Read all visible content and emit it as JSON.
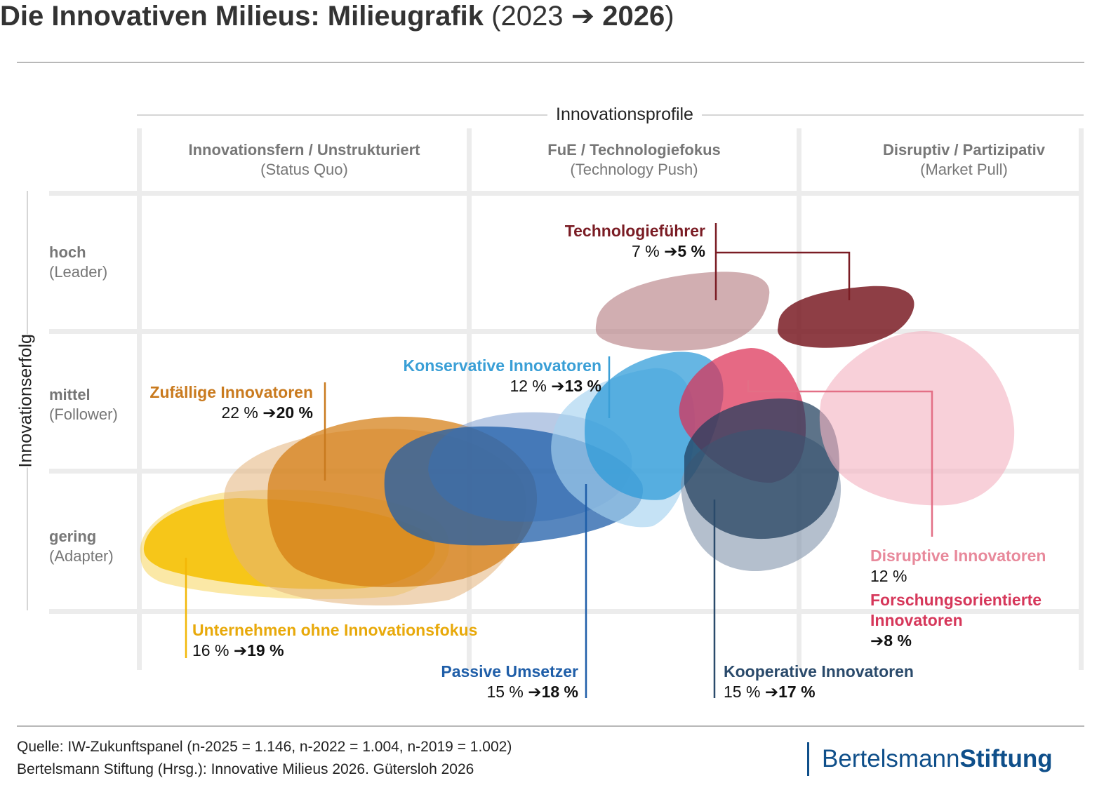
{
  "title": {
    "main": "Die Innovativen Milieus: Milieugrafik",
    "paren_open": "(2023",
    "arrow": "➔",
    "year_new": "2026",
    "paren_close": ")"
  },
  "chart_data": {
    "type": "bubble-matrix",
    "x_axis_title": "Innovationsprofile",
    "y_axis_title": "Innovationserfolg",
    "columns": [
      {
        "label": "Innovationsfern / Unstrukturiert",
        "sub": "(Status Quo)"
      },
      {
        "label": "FuE / Technologiefokus",
        "sub": "(Technology Push)"
      },
      {
        "label": "Disruptiv / Partizipativ",
        "sub": "(Market Pull)"
      }
    ],
    "rows": [
      {
        "label": "hoch",
        "sub": "(Leader)"
      },
      {
        "label": "mittel",
        "sub": "(Follower)"
      },
      {
        "label": "gering",
        "sub": "(Adapter)"
      }
    ],
    "milieus": [
      {
        "id": "technologiefuehrer",
        "name": "Technologieführer",
        "pct_2023": "7 %",
        "pct_2026": "5 %",
        "color": "#7a1c24"
      },
      {
        "id": "konservative",
        "name": "Konservative Innovatoren",
        "pct_2023": "12 %",
        "pct_2026": "13 %",
        "color": "#3a9fd6"
      },
      {
        "id": "zufaellige",
        "name": "Zufällige Innovatoren",
        "pct_2023": "22 %",
        "pct_2026": "20 %",
        "color": "#c97a1e"
      },
      {
        "id": "ohne",
        "name": "Unternehmen ohne Innovationsfokus",
        "pct_2023": "16 %",
        "pct_2026": "19 %",
        "color": "#f2b707"
      },
      {
        "id": "passive",
        "name": "Passive Umsetzer",
        "pct_2023": "15 %",
        "pct_2026": "18 %",
        "color": "#1f5ea8"
      },
      {
        "id": "kooperative",
        "name": "Kooperative Innovatoren",
        "pct_2023": "15 %",
        "pct_2026": "17 %",
        "color": "#2a4a6b"
      },
      {
        "id": "disruptive",
        "name": "Disruptive Innovatoren",
        "pct_2023": "12 %",
        "pct_2026": "",
        "color": "#e8899b"
      },
      {
        "id": "forschung",
        "name": "Forschungsorientierte Innovatoren",
        "pct_2023": "",
        "pct_2026": "8 %",
        "color": "#d6375a"
      }
    ]
  },
  "labels": {
    "forschung_line1": "Forschungsorientierte",
    "forschung_line2": "Innovatoren"
  },
  "footer": {
    "line1": "Quelle: IW-Zukunftspanel (n-2025 = 1.146, n-2022 = 1.004, n-2019 = 1.002)",
    "line2": "Bertelsmann Stiftung (Hrsg.): Innovative Milieus 2026. Gütersloh 2026"
  },
  "logo": {
    "part1": "Bertelsmann",
    "part2": "Stiftung"
  }
}
